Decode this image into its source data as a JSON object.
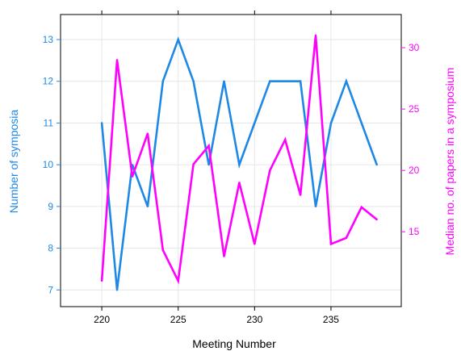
{
  "chart_data": {
    "type": "line",
    "title": "",
    "xlabel": "Meeting Number",
    "ylabel_left": "Number of symposia",
    "ylabel_right": "Median no. of papers in a symposium",
    "x_ticks": [
      220,
      225,
      230,
      235
    ],
    "y_left_ticks": [
      7,
      8,
      9,
      10,
      11,
      12,
      13
    ],
    "y_right_ticks": [
      15,
      20,
      25,
      30
    ],
    "xlim": [
      217.3,
      239.6
    ],
    "ylim_left": [
      6.6,
      13.6
    ],
    "ylim_right": [
      8.9,
      32.7
    ],
    "grid": true,
    "legend": "none",
    "x": [
      220,
      221,
      222,
      223,
      224,
      225,
      226,
      227,
      228,
      229,
      230,
      231,
      232,
      233,
      234,
      235,
      236,
      237,
      238
    ],
    "series": [
      {
        "axis": "left",
        "color": "#1e88e5",
        "values": [
          11,
          7,
          10,
          9,
          12,
          13,
          12,
          10,
          12,
          10,
          11,
          12,
          12,
          12,
          9,
          11,
          12,
          11,
          10
        ]
      },
      {
        "axis": "right",
        "color": "#ff00ff",
        "values": [
          11,
          29,
          19.5,
          23,
          13.5,
          11,
          20.5,
          22,
          13,
          19,
          14,
          20,
          22.5,
          18,
          31,
          14,
          14.5,
          17,
          16
        ]
      }
    ]
  },
  "colors": {
    "left_axis": "#1e88e5",
    "right_axis": "#ff00ff",
    "grid": "#e6e6e6",
    "frame": "#000000"
  }
}
